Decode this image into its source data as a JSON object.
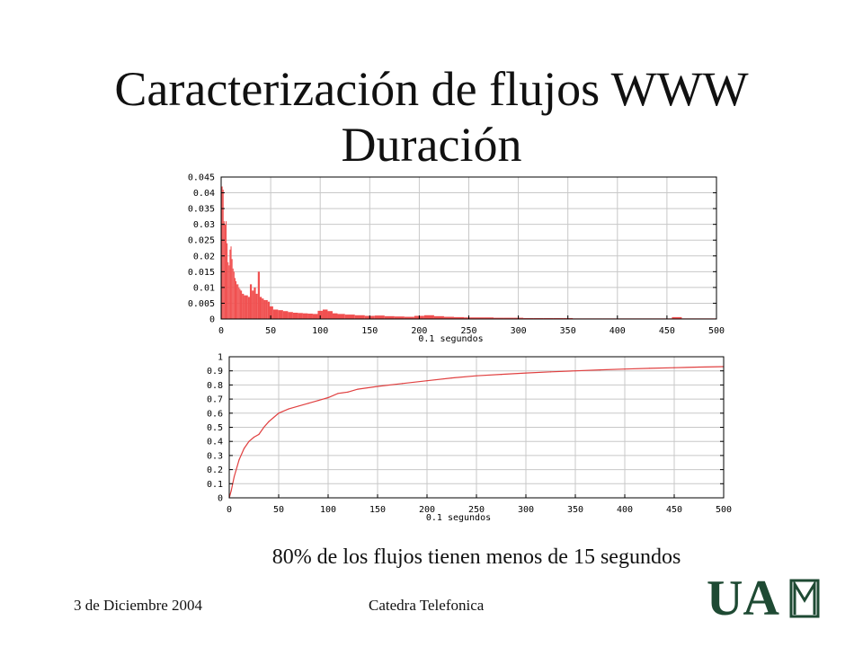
{
  "slide": {
    "title_line1": "Caracterización de flujos WWW",
    "title_line2": "Duración",
    "caption": "80% de los flujos tienen menos de 15 segundos",
    "footer_date": "3 de Diciembre 2004",
    "footer_center": "Catedra Telefonica",
    "logo_text": "UAM"
  },
  "chart_data": [
    {
      "type": "bar",
      "title": "",
      "xlabel": "0.1 segundos",
      "ylabel": "",
      "xlim": [
        0,
        500
      ],
      "ylim": [
        0,
        0.045
      ],
      "xticks": [
        0,
        50,
        100,
        150,
        200,
        250,
        300,
        350,
        400,
        450,
        500
      ],
      "yticks": [
        0,
        0.005,
        0.01,
        0.015,
        0.02,
        0.025,
        0.03,
        0.035,
        0.04,
        0.045
      ],
      "ytick_labels": [
        "0",
        "0.005",
        "0.01",
        "0.015",
        "0.02",
        "0.025",
        "0.03",
        "0.035",
        "0.04",
        "0.045"
      ],
      "grid": true,
      "color": "#f05050",
      "x": [
        1,
        2,
        3,
        4,
        5,
        6,
        7,
        8,
        9,
        10,
        11,
        12,
        13,
        14,
        15,
        16,
        17,
        18,
        19,
        20,
        22,
        24,
        26,
        28,
        30,
        32,
        34,
        36,
        38,
        40,
        42,
        44,
        46,
        48,
        50,
        55,
        60,
        65,
        70,
        75,
        80,
        85,
        90,
        95,
        100,
        105,
        110,
        115,
        120,
        130,
        140,
        150,
        160,
        170,
        180,
        190,
        200,
        210,
        220,
        230,
        240,
        250,
        260,
        270,
        280,
        290,
        300,
        310,
        320,
        330,
        340,
        350,
        360,
        370,
        380,
        390,
        400,
        410,
        420,
        430,
        440,
        450,
        460,
        470,
        480,
        490,
        500
      ],
      "values": [
        0.042,
        0.041,
        0.031,
        0.03,
        0.031,
        0.024,
        0.018,
        0.017,
        0.022,
        0.023,
        0.019,
        0.016,
        0.015,
        0.013,
        0.012,
        0.011,
        0.011,
        0.01,
        0.0095,
        0.009,
        0.008,
        0.0075,
        0.0075,
        0.007,
        0.011,
        0.009,
        0.01,
        0.008,
        0.015,
        0.007,
        0.0065,
        0.006,
        0.006,
        0.0055,
        0.004,
        0.003,
        0.0028,
        0.0025,
        0.0022,
        0.002,
        0.0019,
        0.0018,
        0.0017,
        0.0016,
        0.0026,
        0.003,
        0.0025,
        0.0018,
        0.0016,
        0.0014,
        0.0012,
        0.001,
        0.0011,
        0.0009,
        0.0008,
        0.0007,
        0.001,
        0.0012,
        0.0009,
        0.0007,
        0.0006,
        0.0005,
        0.0005,
        0.0005,
        0.0004,
        0.0004,
        0.0004,
        0.0003,
        0.0003,
        0.0003,
        0.0003,
        0.0003,
        0.0002,
        0.0002,
        0.0002,
        0.0002,
        0.0002,
        0.0002,
        0.0002,
        0.0002,
        0.0002,
        0.0002,
        0.0006,
        0.0002,
        0.0002,
        0.0002,
        0.0002
      ]
    },
    {
      "type": "line",
      "title": "",
      "xlabel": "0.1 segundos",
      "ylabel": "",
      "xlim": [
        0,
        500
      ],
      "ylim": [
        0,
        1
      ],
      "xticks": [
        0,
        50,
        100,
        150,
        200,
        250,
        300,
        350,
        400,
        450,
        500
      ],
      "yticks": [
        0,
        0.1,
        0.2,
        0.3,
        0.4,
        0.5,
        0.6,
        0.7,
        0.8,
        0.9,
        1
      ],
      "ytick_labels": [
        "0",
        "0.1",
        "0.2",
        "0.3",
        "0.4",
        "0.5",
        "0.6",
        "0.7",
        "0.8",
        "0.9",
        "1"
      ],
      "grid": true,
      "color": "#e04040",
      "x": [
        0,
        2,
        5,
        10,
        15,
        20,
        25,
        30,
        35,
        40,
        45,
        50,
        60,
        70,
        80,
        90,
        100,
        110,
        120,
        130,
        150,
        175,
        200,
        225,
        250,
        275,
        300,
        325,
        350,
        375,
        400,
        425,
        450,
        475,
        500
      ],
      "values": [
        0.0,
        0.05,
        0.15,
        0.27,
        0.35,
        0.4,
        0.43,
        0.45,
        0.5,
        0.54,
        0.57,
        0.6,
        0.63,
        0.65,
        0.67,
        0.69,
        0.71,
        0.74,
        0.75,
        0.77,
        0.79,
        0.81,
        0.83,
        0.85,
        0.865,
        0.875,
        0.885,
        0.893,
        0.9,
        0.907,
        0.913,
        0.918,
        0.922,
        0.927,
        0.93
      ]
    }
  ]
}
